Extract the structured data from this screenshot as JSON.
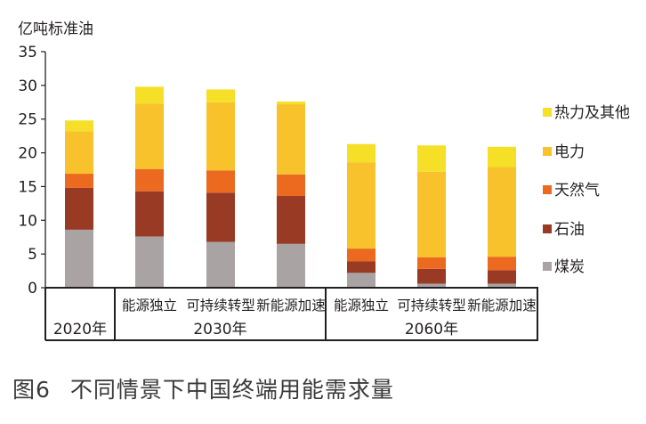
{
  "caption": {
    "figure_label": "图6",
    "title": "不同情景下中国终端用能需求量"
  },
  "colors": {
    "coal": "#aaa3a4",
    "oil": "#983a24",
    "gas": "#ec6a1f",
    "electricity": "#f7c22b",
    "heat_other": "#f5e027",
    "axis": "#231f20"
  },
  "chart_data": {
    "type": "bar",
    "stacked": true,
    "ylabel": "亿吨标准油",
    "ylim": [
      0,
      35
    ],
    "yticks": [
      0,
      5,
      10,
      15,
      20,
      25,
      30,
      35
    ],
    "grid": false,
    "legend_position": "right",
    "categories": [
      "",
      "能源独立",
      "可持续转型",
      "新能源加速",
      "能源独立",
      "可持续转型",
      "新能源加速"
    ],
    "groups": [
      {
        "label": "2020年",
        "span": [
          0,
          0
        ]
      },
      {
        "label": "2030年",
        "span": [
          1,
          3
        ]
      },
      {
        "label": "2060年",
        "span": [
          4,
          6
        ]
      }
    ],
    "series": [
      {
        "name": "煤炭",
        "color_key": "coal",
        "values": [
          8.6,
          7.6,
          6.8,
          6.5,
          2.2,
          0.6,
          0.6
        ]
      },
      {
        "name": "石油",
        "color_key": "oil",
        "values": [
          6.2,
          6.7,
          7.3,
          7.1,
          1.7,
          2.2,
          2.0
        ]
      },
      {
        "name": "天然气",
        "color_key": "gas",
        "values": [
          2.1,
          3.3,
          3.3,
          3.2,
          1.9,
          1.7,
          2.0
        ]
      },
      {
        "name": "电力",
        "color_key": "electricity",
        "values": [
          6.3,
          9.7,
          10.1,
          10.4,
          12.8,
          12.7,
          13.3
        ]
      },
      {
        "name": "热力及其他",
        "color_key": "heat_other",
        "values": [
          1.6,
          2.5,
          1.9,
          0.4,
          2.7,
          3.9,
          3.0
        ]
      }
    ]
  }
}
